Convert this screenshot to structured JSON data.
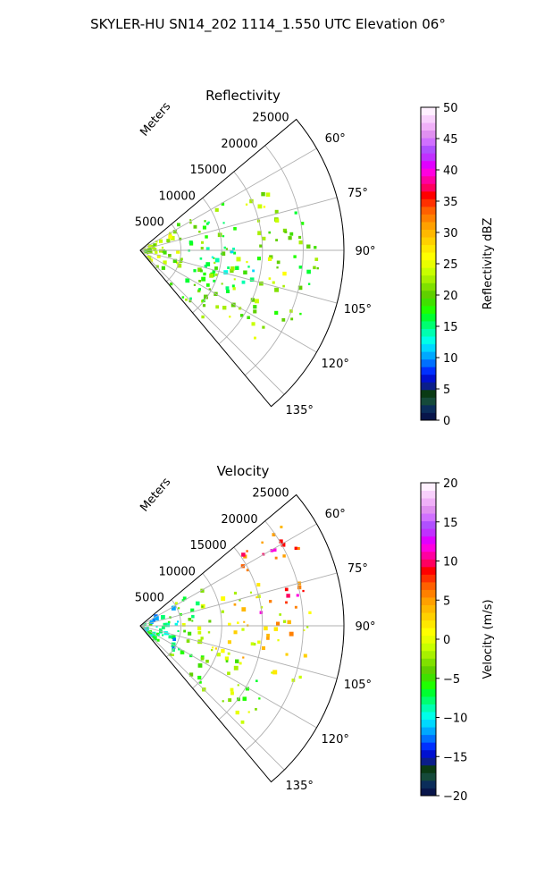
{
  "figure": {
    "title": "SKYLER-HU  SN14_202  1114_1.550 UTC Elevation 06°"
  },
  "chart_data": [
    {
      "type": "heatmap",
      "projection": "polar-sector",
      "title": "Reflectivity",
      "radial_label": "Meters",
      "radial_ticks": [
        5000,
        10000,
        15000,
        20000,
        25000
      ],
      "radial_range": [
        0,
        25000
      ],
      "angle_ticks": [
        "60°",
        "75°",
        "90°",
        "105°",
        "120°",
        "135°"
      ],
      "angle_tick_values": [
        60,
        75,
        90,
        105,
        120,
        135
      ],
      "angle_range": [
        50,
        140
      ],
      "grid": true,
      "colorbar": {
        "label": "Reflectivity dBZ",
        "range": [
          0,
          50
        ],
        "ticks": [
          "0",
          "5",
          "10",
          "15",
          "20",
          "25",
          "30",
          "35",
          "40",
          "45",
          "50"
        ],
        "tick_values": [
          0,
          5,
          10,
          15,
          20,
          25,
          30,
          35,
          40,
          45,
          50
        ],
        "colors": [
          "#08154a",
          "#0b2d5a",
          "#154a3a",
          "#0a3a14",
          "#0b1e8a",
          "#0010d0",
          "#0030ff",
          "#0070ff",
          "#00a8ff",
          "#00d8ff",
          "#00ffe8",
          "#00ffb0",
          "#00ff70",
          "#00ff30",
          "#20ff00",
          "#40e000",
          "#60d000",
          "#80e000",
          "#a8f000",
          "#c8ff00",
          "#e8ff00",
          "#ffff00",
          "#ffe800",
          "#ffd000",
          "#ffb800",
          "#ffa000",
          "#ff8000",
          "#ff6000",
          "#ff3000",
          "#ff0000",
          "#ff0060",
          "#ff00a0",
          "#ff00e0",
          "#e000ff",
          "#c030ff",
          "#b050ff",
          "#d070ff",
          "#e090f0",
          "#f0b0f8",
          "#f8d0fc",
          "#fff0ff"
        ]
      },
      "field_summary": [
        {
          "range_from": 0,
          "range_to": 5000,
          "azimuth_from": 58,
          "azimuth_to": 140,
          "value": 22
        },
        {
          "range_from": 5000,
          "range_to": 12000,
          "azimuth_from": 56,
          "azimuth_to": 138,
          "value": 19
        },
        {
          "range_from": 8000,
          "range_to": 15000,
          "azimuth_from": 88,
          "azimuth_to": 115,
          "value": 14
        },
        {
          "range_from": 12000,
          "range_to": 18000,
          "azimuth_from": 62,
          "azimuth_to": 128,
          "value": 22
        },
        {
          "range_from": 18000,
          "range_to": 22000,
          "azimuth_from": 70,
          "azimuth_to": 120,
          "value": 20
        }
      ]
    },
    {
      "type": "heatmap",
      "projection": "polar-sector",
      "title": "Velocity",
      "radial_label": "Meters",
      "radial_ticks": [
        5000,
        10000,
        15000,
        20000,
        25000
      ],
      "radial_range": [
        0,
        25000
      ],
      "angle_ticks": [
        "60°",
        "75°",
        "90°",
        "105°",
        "120°",
        "135°"
      ],
      "angle_tick_values": [
        60,
        75,
        90,
        105,
        120,
        135
      ],
      "angle_range": [
        50,
        140
      ],
      "grid": true,
      "colorbar": {
        "label": "Velocity (m/s)",
        "range": [
          -20,
          20
        ],
        "ticks": [
          "−20",
          "−15",
          "−10",
          "−5",
          "0",
          "5",
          "10",
          "15",
          "20"
        ],
        "tick_values": [
          -20,
          -15,
          -10,
          -5,
          0,
          5,
          10,
          15,
          20
        ],
        "colors": [
          "#08154a",
          "#0b2d5a",
          "#154a3a",
          "#0a3a14",
          "#0b1e8a",
          "#0010d0",
          "#0030ff",
          "#0070ff",
          "#00a8ff",
          "#00d8ff",
          "#00ffe8",
          "#00ffb0",
          "#00ff70",
          "#00ff30",
          "#20ff00",
          "#40e000",
          "#60d000",
          "#80e000",
          "#a8f000",
          "#c8ff00",
          "#e8ff00",
          "#ffff00",
          "#ffe800",
          "#ffd000",
          "#ffb800",
          "#ffa000",
          "#ff8000",
          "#ff6000",
          "#ff3000",
          "#ff0000",
          "#ff0060",
          "#ff00a0",
          "#ff00e0",
          "#e000ff",
          "#c030ff",
          "#b050ff",
          "#d070ff",
          "#e090f0",
          "#f0b0f8",
          "#f8d0fc",
          "#fff0ff"
        ]
      },
      "field_summary": [
        {
          "range_from": 0,
          "range_to": 5000,
          "azimuth_from": 58,
          "azimuth_to": 140,
          "value": -9
        },
        {
          "range_from": 5000,
          "range_to": 9000,
          "azimuth_from": 58,
          "azimuth_to": 135,
          "value": -4
        },
        {
          "range_from": 9000,
          "range_to": 16000,
          "azimuth_from": 70,
          "azimuth_to": 108,
          "value": 1
        },
        {
          "range_from": 9000,
          "range_to": 18000,
          "azimuth_from": 108,
          "azimuth_to": 135,
          "value": -3
        },
        {
          "range_from": 14000,
          "range_to": 22000,
          "azimuth_from": 55,
          "azimuth_to": 85,
          "value": 8
        },
        {
          "range_from": 16000,
          "range_to": 21000,
          "azimuth_from": 85,
          "azimuth_to": 112,
          "value": 2
        }
      ]
    }
  ]
}
